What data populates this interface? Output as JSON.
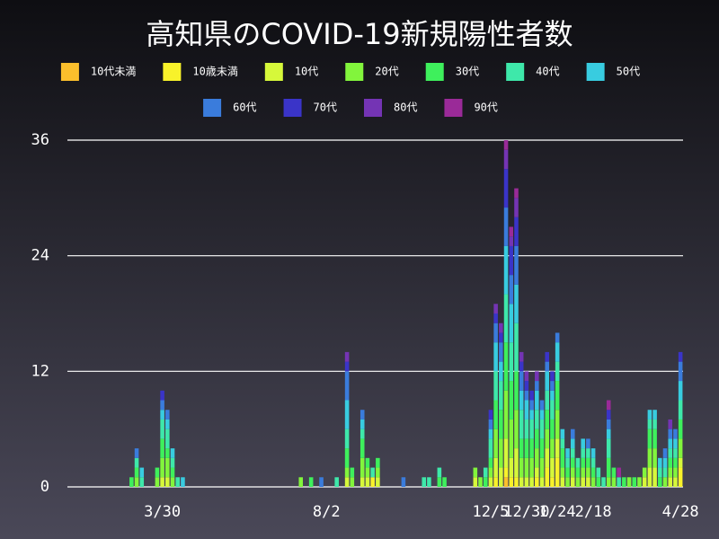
{
  "chart_data": {
    "type": "stacked-bar",
    "title": "高知県のCOVID-19新規陽性者数",
    "categories": [
      null,
      null,
      null,
      null,
      null,
      null,
      null,
      null,
      null,
      null,
      null,
      null,
      null,
      null,
      null,
      null,
      null,
      null,
      "3/30",
      null,
      null,
      null,
      null,
      null,
      null,
      null,
      null,
      null,
      null,
      null,
      null,
      null,
      null,
      null,
      null,
      null,
      null,
      null,
      null,
      null,
      null,
      null,
      null,
      null,
      null,
      null,
      null,
      null,
      null,
      null,
      "8/2",
      null,
      null,
      null,
      null,
      null,
      null,
      null,
      null,
      null,
      null,
      null,
      null,
      null,
      null,
      null,
      null,
      null,
      null,
      null,
      null,
      null,
      null,
      null,
      null,
      null,
      null,
      null,
      null,
      null,
      null,
      null,
      "12/5",
      null,
      null,
      null,
      null,
      null,
      null,
      "12/30",
      null,
      null,
      null,
      null,
      null,
      "1/24",
      null,
      null,
      null,
      null,
      null,
      null,
      "2/18",
      null,
      null,
      null,
      null,
      null,
      null,
      null,
      null,
      null,
      null,
      null,
      null,
      null,
      null,
      null,
      null,
      "4/28"
    ],
    "series": [
      {
        "name": "10代未満",
        "color": "#fbbf2c",
        "values": [
          0,
          0,
          0,
          0,
          0,
          0,
          0,
          0,
          0,
          0,
          0,
          0,
          0,
          0,
          0,
          0,
          0,
          0,
          0,
          0,
          0,
          0,
          0,
          0,
          0,
          0,
          0,
          0,
          0,
          0,
          0,
          0,
          0,
          0,
          0,
          0,
          0,
          0,
          0,
          0,
          0,
          0,
          0,
          0,
          0,
          0,
          0,
          0,
          0,
          0,
          0,
          0,
          0,
          0,
          0,
          0,
          0,
          0,
          0,
          0,
          0,
          0,
          0,
          0,
          0,
          0,
          0,
          0,
          0,
          0,
          0,
          0,
          0,
          0,
          0,
          0,
          0,
          0,
          0,
          0,
          0,
          0,
          0,
          0,
          0,
          1,
          0,
          0,
          0,
          0,
          0,
          0,
          0,
          0,
          0,
          0,
          0,
          0,
          0,
          0,
          0,
          0,
          0,
          0,
          0,
          0,
          0,
          0,
          0,
          0,
          0,
          0,
          0,
          0,
          0,
          0,
          0,
          0,
          0,
          0
        ]
      },
      {
        "name": "10歳未満",
        "color": "#f8f22a",
        "values": [
          0,
          0,
          0,
          0,
          0,
          0,
          0,
          0,
          0,
          0,
          0,
          0,
          0,
          0,
          0,
          0,
          0,
          0,
          0,
          0,
          0,
          0,
          0,
          0,
          0,
          0,
          0,
          0,
          0,
          0,
          0,
          0,
          0,
          0,
          0,
          0,
          0,
          0,
          0,
          0,
          0,
          0,
          0,
          0,
          0,
          0,
          0,
          0,
          0,
          0,
          0,
          0,
          0,
          0,
          0,
          0,
          0,
          0,
          0,
          1,
          0,
          0,
          0,
          0,
          0,
          0,
          0,
          0,
          0,
          0,
          0,
          0,
          0,
          0,
          0,
          0,
          0,
          0,
          0,
          0,
          0,
          0,
          0,
          1,
          0,
          1,
          1,
          1,
          0,
          0,
          0,
          1,
          0,
          2,
          1,
          3,
          0,
          0,
          0,
          0,
          0,
          0,
          0,
          0,
          0,
          0,
          0,
          0,
          0,
          0,
          0,
          0,
          0,
          0,
          0,
          0,
          0,
          0,
          0,
          2
        ]
      },
      {
        "name": "10代",
        "color": "#d6f83a",
        "values": [
          0,
          0,
          0,
          0,
          0,
          0,
          0,
          0,
          0,
          0,
          0,
          0,
          0,
          0,
          0,
          0,
          0,
          0,
          1,
          1,
          0,
          0,
          0,
          0,
          0,
          0,
          0,
          0,
          0,
          0,
          0,
          0,
          0,
          0,
          0,
          0,
          0,
          0,
          0,
          0,
          0,
          0,
          0,
          0,
          0,
          0,
          0,
          0,
          0,
          0,
          0,
          0,
          0,
          0,
          1,
          0,
          0,
          1,
          1,
          0,
          1,
          0,
          0,
          0,
          0,
          0,
          0,
          0,
          0,
          0,
          0,
          0,
          0,
          0,
          0,
          0,
          0,
          0,
          0,
          1,
          0,
          0,
          1,
          2,
          2,
          3,
          2,
          3,
          1,
          1,
          1,
          1,
          1,
          2,
          2,
          2,
          1,
          0,
          1,
          0,
          1,
          1,
          0,
          0,
          0,
          0,
          0,
          0,
          0,
          0,
          0,
          0,
          1,
          2,
          2,
          0,
          0,
          1,
          1,
          1
        ]
      },
      {
        "name": "20代",
        "color": "#82f53c",
        "values": [
          0,
          0,
          0,
          0,
          0,
          0,
          0,
          0,
          0,
          0,
          0,
          0,
          0,
          1,
          0,
          0,
          0,
          1,
          2,
          2,
          1,
          0,
          0,
          0,
          0,
          0,
          0,
          0,
          0,
          0,
          0,
          0,
          0,
          0,
          0,
          0,
          0,
          0,
          0,
          0,
          0,
          0,
          0,
          0,
          0,
          1,
          0,
          0,
          0,
          0,
          0,
          0,
          0,
          0,
          1,
          1,
          0,
          2,
          1,
          0,
          1,
          0,
          0,
          0,
          0,
          0,
          0,
          0,
          0,
          0,
          0,
          0,
          0,
          0,
          0,
          0,
          0,
          0,
          0,
          1,
          1,
          0,
          1,
          3,
          3,
          5,
          4,
          4,
          2,
          2,
          2,
          2,
          2,
          2,
          2,
          3,
          1,
          1,
          1,
          1,
          1,
          1,
          1,
          0,
          0,
          1,
          1,
          0,
          0,
          1,
          0,
          1,
          1,
          2,
          2,
          0,
          1,
          1,
          1,
          2
        ]
      },
      {
        "name": "30代",
        "color": "#3ef05c",
        "values": [
          0,
          0,
          0,
          0,
          0,
          0,
          0,
          0,
          0,
          0,
          0,
          0,
          1,
          1,
          0,
          0,
          0,
          1,
          2,
          1,
          1,
          0,
          0,
          0,
          0,
          0,
          0,
          0,
          0,
          0,
          0,
          0,
          0,
          0,
          0,
          0,
          0,
          0,
          0,
          0,
          0,
          0,
          0,
          0,
          0,
          0,
          0,
          1,
          0,
          0,
          0,
          0,
          0,
          0,
          2,
          1,
          0,
          2,
          1,
          0,
          1,
          0,
          0,
          0,
          0,
          0,
          0,
          0,
          0,
          0,
          0,
          0,
          1,
          1,
          0,
          0,
          0,
          0,
          0,
          0,
          0,
          1,
          1,
          3,
          3,
          5,
          4,
          4,
          2,
          2,
          2,
          2,
          2,
          2,
          2,
          3,
          2,
          1,
          1,
          1,
          1,
          1,
          1,
          1,
          0,
          2,
          1,
          0,
          1,
          0,
          1,
          0,
          0,
          2,
          2,
          1,
          0,
          1,
          1,
          2
        ]
      },
      {
        "name": "40代",
        "color": "#3ee8aa",
        "values": [
          0,
          0,
          0,
          0,
          0,
          0,
          0,
          0,
          0,
          0,
          0,
          0,
          0,
          1,
          1,
          0,
          0,
          0,
          2,
          2,
          1,
          1,
          0,
          0,
          0,
          0,
          0,
          0,
          0,
          0,
          0,
          0,
          0,
          0,
          0,
          0,
          0,
          0,
          0,
          0,
          0,
          0,
          0,
          0,
          0,
          0,
          0,
          0,
          0,
          0,
          0,
          0,
          1,
          0,
          2,
          0,
          0,
          1,
          0,
          1,
          0,
          0,
          0,
          0,
          0,
          0,
          0,
          0,
          0,
          1,
          1,
          0,
          1,
          0,
          0,
          0,
          0,
          0,
          0,
          0,
          0,
          1,
          2,
          3,
          3,
          5,
          4,
          5,
          3,
          2,
          2,
          2,
          2,
          2,
          2,
          2,
          1,
          1,
          1,
          1,
          1,
          1,
          1,
          1,
          1,
          2,
          0,
          1,
          0,
          0,
          0,
          0,
          0,
          1,
          1,
          1,
          1,
          1,
          1,
          2
        ]
      },
      {
        "name": "50代",
        "color": "#38cce0",
        "values": [
          0,
          0,
          0,
          0,
          0,
          0,
          0,
          0,
          0,
          0,
          0,
          0,
          0,
          0,
          1,
          0,
          0,
          0,
          1,
          1,
          1,
          0,
          1,
          0,
          0,
          0,
          0,
          0,
          0,
          0,
          0,
          0,
          0,
          0,
          0,
          0,
          0,
          0,
          0,
          0,
          0,
          0,
          0,
          0,
          0,
          0,
          0,
          0,
          0,
          0,
          0,
          0,
          0,
          0,
          3,
          0,
          0,
          1,
          0,
          0,
          0,
          0,
          0,
          0,
          0,
          0,
          0,
          0,
          0,
          0,
          0,
          0,
          0,
          0,
          0,
          0,
          0,
          0,
          0,
          0,
          0,
          0,
          1,
          3,
          2,
          5,
          4,
          4,
          2,
          2,
          1,
          2,
          1,
          2,
          1,
          2,
          1,
          1,
          1,
          0,
          1,
          0,
          1,
          0,
          0,
          1,
          0,
          0,
          0,
          0,
          0,
          0,
          0,
          1,
          1,
          1,
          1,
          1,
          1,
          2
        ]
      },
      {
        "name": "60代",
        "color": "#3a7cdc",
        "values": [
          0,
          0,
          0,
          0,
          0,
          0,
          0,
          0,
          0,
          0,
          0,
          0,
          0,
          1,
          0,
          0,
          0,
          0,
          1,
          1,
          0,
          0,
          0,
          0,
          0,
          0,
          0,
          0,
          0,
          0,
          0,
          0,
          0,
          0,
          0,
          0,
          0,
          0,
          0,
          0,
          0,
          0,
          0,
          0,
          0,
          0,
          0,
          0,
          0,
          1,
          0,
          0,
          0,
          0,
          3,
          0,
          0,
          1,
          0,
          0,
          0,
          0,
          0,
          0,
          0,
          1,
          0,
          0,
          0,
          0,
          0,
          0,
          0,
          0,
          0,
          0,
          0,
          0,
          0,
          0,
          0,
          0,
          1,
          2,
          2,
          4,
          3,
          4,
          2,
          1,
          1,
          1,
          1,
          1,
          1,
          1,
          0,
          0,
          1,
          0,
          0,
          1,
          0,
          0,
          0,
          1,
          0,
          0,
          0,
          0,
          0,
          0,
          0,
          0,
          0,
          0,
          1,
          1,
          1,
          2
        ]
      },
      {
        "name": "70代",
        "color": "#3a34c8",
        "values": [
          0,
          0,
          0,
          0,
          0,
          0,
          0,
          0,
          0,
          0,
          0,
          0,
          0,
          0,
          0,
          0,
          0,
          0,
          1,
          0,
          0,
          0,
          0,
          0,
          0,
          0,
          0,
          0,
          0,
          0,
          0,
          0,
          0,
          0,
          0,
          0,
          0,
          0,
          0,
          0,
          0,
          0,
          0,
          0,
          0,
          0,
          0,
          0,
          0,
          0,
          0,
          0,
          0,
          0,
          1,
          0,
          0,
          0,
          0,
          0,
          0,
          0,
          0,
          0,
          0,
          0,
          0,
          0,
          0,
          0,
          0,
          0,
          0,
          0,
          0,
          0,
          0,
          0,
          0,
          0,
          0,
          0,
          1,
          1,
          1,
          4,
          3,
          3,
          1,
          1,
          1,
          0,
          0,
          1,
          1,
          0,
          0,
          0,
          0,
          0,
          0,
          0,
          0,
          0,
          0,
          1,
          0,
          0,
          0,
          0,
          0,
          0,
          0,
          0,
          0,
          0,
          0,
          0,
          0,
          1
        ]
      },
      {
        "name": "80代",
        "color": "#7434b4",
        "values": [
          0,
          0,
          0,
          0,
          0,
          0,
          0,
          0,
          0,
          0,
          0,
          0,
          0,
          0,
          0,
          0,
          0,
          0,
          0,
          0,
          0,
          0,
          0,
          0,
          0,
          0,
          0,
          0,
          0,
          0,
          0,
          0,
          0,
          0,
          0,
          0,
          0,
          0,
          0,
          0,
          0,
          0,
          0,
          0,
          0,
          0,
          0,
          0,
          0,
          0,
          0,
          0,
          0,
          0,
          1,
          0,
          0,
          0,
          0,
          0,
          0,
          0,
          0,
          0,
          0,
          0,
          0,
          0,
          0,
          0,
          0,
          0,
          0,
          0,
          0,
          0,
          0,
          0,
          0,
          0,
          0,
          0,
          0,
          1,
          1,
          2,
          1,
          2,
          1,
          1,
          0,
          1,
          0,
          0,
          0,
          0,
          0,
          0,
          0,
          0,
          0,
          0,
          0,
          0,
          0,
          0,
          0,
          0,
          0,
          0,
          0,
          0,
          0,
          0,
          0,
          0,
          0,
          1,
          0,
          0
        ]
      },
      {
        "name": "90代",
        "color": "#9a2a98",
        "values": [
          0,
          0,
          0,
          0,
          0,
          0,
          0,
          0,
          0,
          0,
          0,
          0,
          0,
          0,
          0,
          0,
          0,
          0,
          0,
          0,
          0,
          0,
          0,
          0,
          0,
          0,
          0,
          0,
          0,
          0,
          0,
          0,
          0,
          0,
          0,
          0,
          0,
          0,
          0,
          0,
          0,
          0,
          0,
          0,
          0,
          0,
          0,
          0,
          0,
          0,
          0,
          0,
          0,
          0,
          0,
          0,
          0,
          0,
          0,
          0,
          0,
          0,
          0,
          0,
          0,
          0,
          0,
          0,
          0,
          0,
          0,
          0,
          0,
          0,
          0,
          0,
          0,
          0,
          0,
          0,
          0,
          0,
          0,
          0,
          0,
          1,
          1,
          1,
          0,
          0,
          0,
          0,
          0,
          0,
          0,
          0,
          0,
          0,
          0,
          0,
          0,
          0,
          0,
          0,
          0,
          1,
          0,
          1,
          0,
          0,
          0,
          0,
          0,
          0,
          0,
          0,
          0,
          0,
          0,
          0
        ]
      }
    ],
    "ylim": [
      0,
      36
    ],
    "yticks": [
      0,
      12,
      24,
      36
    ],
    "grid": true
  }
}
